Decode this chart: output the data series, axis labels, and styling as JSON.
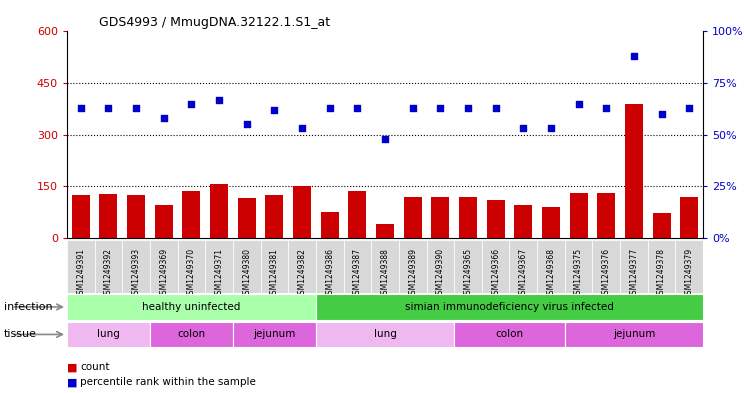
{
  "title": "GDS4993 / MmugDNA.32122.1.S1_at",
  "samples": [
    "GSM1249391",
    "GSM1249392",
    "GSM1249393",
    "GSM1249369",
    "GSM1249370",
    "GSM1249371",
    "GSM1249380",
    "GSM1249381",
    "GSM1249382",
    "GSM1249386",
    "GSM1249387",
    "GSM1249388",
    "GSM1249389",
    "GSM1249390",
    "GSM1249365",
    "GSM1249366",
    "GSM1249367",
    "GSM1249368",
    "GSM1249375",
    "GSM1249376",
    "GSM1249377",
    "GSM1249378",
    "GSM1249379"
  ],
  "counts": [
    125,
    128,
    125,
    95,
    135,
    155,
    115,
    125,
    150,
    75,
    135,
    40,
    120,
    120,
    120,
    110,
    95,
    90,
    130,
    130,
    390,
    72,
    120
  ],
  "percentiles": [
    63,
    63,
    63,
    58,
    65,
    67,
    55,
    62,
    53,
    63,
    63,
    48,
    63,
    63,
    63,
    63,
    53,
    53,
    65,
    63,
    88,
    60,
    63
  ],
  "bar_color": "#cc0000",
  "dot_color": "#0000cc",
  "left_yaxis_ticks": [
    0,
    150,
    300,
    450,
    600
  ],
  "left_yaxis_color": "#cc0000",
  "right_yaxis_ticks": [
    0,
    25,
    50,
    75,
    100
  ],
  "right_yaxis_color": "#0000cc",
  "infection_groups": [
    {
      "label": "healthy uninfected",
      "start": 0,
      "end": 9,
      "color": "#aaffaa"
    },
    {
      "label": "simian immunodeficiency virus infected",
      "start": 9,
      "end": 23,
      "color": "#44cc44"
    }
  ],
  "tissue_groups": [
    {
      "label": "lung",
      "start": 0,
      "end": 3,
      "color": "#f0b8f0"
    },
    {
      "label": "colon",
      "start": 3,
      "end": 6,
      "color": "#dd66dd"
    },
    {
      "label": "jejunum",
      "start": 6,
      "end": 9,
      "color": "#dd66dd"
    },
    {
      "label": "lung",
      "start": 9,
      "end": 14,
      "color": "#f0b8f0"
    },
    {
      "label": "colon",
      "start": 14,
      "end": 18,
      "color": "#dd66dd"
    },
    {
      "label": "jejunum",
      "start": 18,
      "end": 23,
      "color": "#dd66dd"
    }
  ],
  "legend_count_label": "count",
  "legend_percentile_label": "percentile rank within the sample",
  "infection_label": "infection",
  "tissue_label": "tissue",
  "plot_bg": "white",
  "fig_bg": "white"
}
